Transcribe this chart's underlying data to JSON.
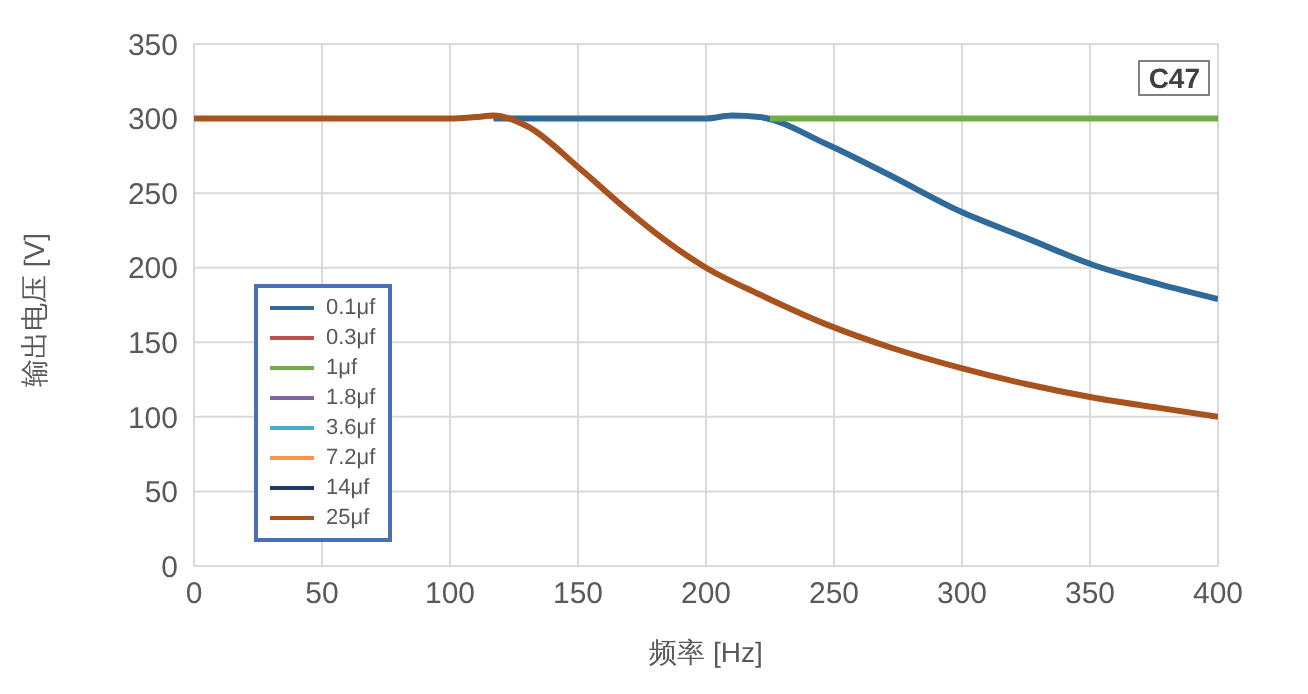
{
  "chart_data": {
    "type": "line",
    "xlabel": "频率 [Hz]",
    "ylabel": "输出电压 [V]",
    "annotations": [
      "C47"
    ],
    "xlim": [
      0,
      400
    ],
    "xticks": [
      0,
      50,
      100,
      150,
      200,
      250,
      300,
      350,
      400
    ],
    "ylim": [
      0,
      350
    ],
    "yticks": [
      0,
      50,
      100,
      150,
      200,
      250,
      300,
      350
    ],
    "grid": true,
    "legend": "bottom left",
    "marker": "none",
    "line_style": "solid",
    "series": [
      {
        "name": "0.1μf",
        "color": "#2f6a9a",
        "x": [
          117,
          150,
          200,
          210,
          221,
          247,
          273,
          299,
          325,
          351,
          377,
          400
        ],
        "values": [
          300,
          300,
          300,
          302,
          301,
          283,
          261,
          238,
          220,
          202,
          189,
          179
        ]
      },
      {
        "name": "0.3μf",
        "color": "#c0504d"
      },
      {
        "name": "1μf",
        "color": "#70ad47",
        "x": [
          225,
          300,
          400
        ],
        "values": [
          300,
          300,
          300
        ]
      },
      {
        "name": "1.8μf",
        "color": "#8064a2"
      },
      {
        "name": "3.6μf",
        "color": "#4bacc6"
      },
      {
        "name": "7.2μf",
        "color": "#f79646"
      },
      {
        "name": "14μf",
        "color": "#1f3864"
      },
      {
        "name": "25μf",
        "color": "#a8521e",
        "x": [
          0,
          100,
          110,
          117,
          130,
          151,
          169,
          182,
          200,
          221,
          247,
          273,
          299,
          325,
          351,
          377,
          400
        ],
        "values": [
          300,
          300,
          301,
          302,
          295,
          266,
          239,
          221,
          200,
          182,
          162,
          146,
          133,
          122,
          113,
          106,
          100
        ]
      }
    ]
  }
}
